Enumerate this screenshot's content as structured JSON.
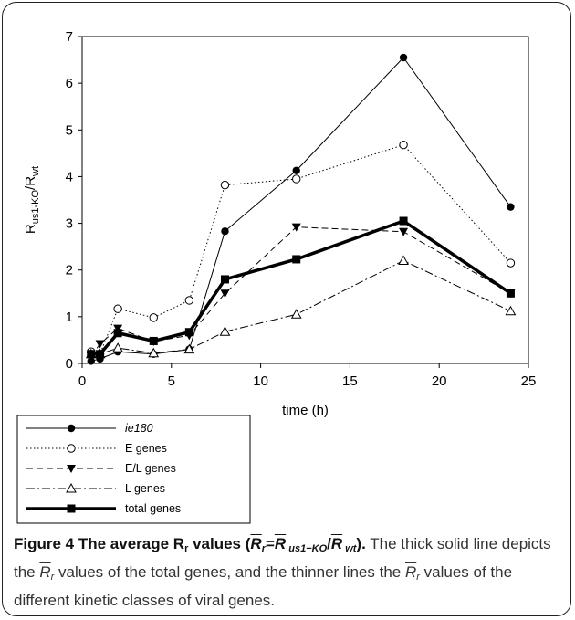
{
  "chart_data": {
    "type": "line",
    "xlabel": "time (h)",
    "ylabel": {
      "main": "R",
      "sub1": "us1-KO",
      "sep": "/R",
      "sub2": "wt"
    },
    "xlim": [
      0,
      25
    ],
    "ylim": [
      0,
      7
    ],
    "xticks": [
      "0",
      "5",
      "10",
      "15",
      "20",
      "25"
    ],
    "yticks": [
      "0",
      "1",
      "2",
      "3",
      "4",
      "5",
      "6",
      "7"
    ],
    "x": [
      0.5,
      1,
      2,
      4,
      6,
      8,
      12,
      18,
      24
    ],
    "legend_position": "bottom-left, below plot",
    "series": [
      {
        "name": "ie180",
        "marker": "filled-circle",
        "dash": "solid",
        "width": 1,
        "color": "#000000",
        "values": [
          0.05,
          0.1,
          0.25,
          0.2,
          0.3,
          2.83,
          4.13,
          6.55,
          3.35
        ]
      },
      {
        "name": "E genes",
        "marker": "open-circle",
        "dash": "dotted",
        "width": 1,
        "color": "#000000",
        "values": [
          0.25,
          0.2,
          1.17,
          0.98,
          1.35,
          3.82,
          3.95,
          4.68,
          2.15
        ]
      },
      {
        "name": "E/L genes",
        "marker": "filled-triangle-down",
        "dash": "dashed",
        "width": 1,
        "color": "#000000",
        "values": [
          0.15,
          0.42,
          0.75,
          0.47,
          0.6,
          1.5,
          2.92,
          2.82,
          1.5
        ]
      },
      {
        "name": "L genes",
        "marker": "open-triangle-up",
        "dash": "dash-dot",
        "width": 1,
        "color": "#000000",
        "values": [
          0.2,
          0.2,
          0.33,
          0.22,
          0.3,
          0.68,
          1.05,
          2.2,
          1.12
        ]
      },
      {
        "name": "total genes",
        "marker": "filled-square",
        "dash": "solid",
        "width": 3.5,
        "color": "#000000",
        "values": [
          0.2,
          0.2,
          0.65,
          0.48,
          0.67,
          1.8,
          2.23,
          3.05,
          1.5
        ]
      }
    ]
  },
  "caption": {
    "label": "Figure 4 The average R",
    "label_sub": "r",
    "label_tail": " values (",
    "formula": {
      "r": "R",
      "r_sub": "r",
      "eq": "=",
      "r2": "R",
      "r2_sub": " us1−KO",
      "slash": "/",
      "r3": "R",
      "r3_sub": " wt"
    },
    "label_close": ").",
    "text1": " The thick solid line depicts the ",
    "text2": " values of the total genes, and the thinner lines the ",
    "text3": " values of the different kinetic classes of viral genes.",
    "symbol": "R",
    "symbol_sub": "r"
  }
}
